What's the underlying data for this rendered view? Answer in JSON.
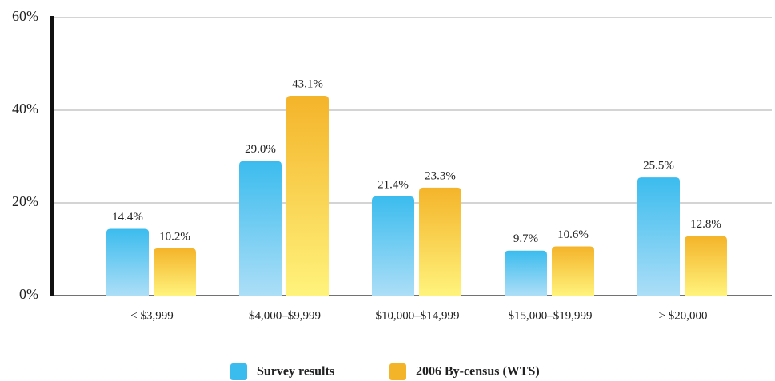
{
  "chart_data": {
    "type": "bar",
    "categories": [
      "< $3,999",
      "$4,000–$9,999",
      "$10,000–$14,999",
      "$15,000–$19,999",
      "> $20,000"
    ],
    "series": [
      {
        "name": "Survey results",
        "color": "#3bbcee",
        "values": [
          14.4,
          29.0,
          21.4,
          9.7,
          25.5
        ],
        "value_labels": [
          "14.4%",
          "29.0%",
          "21.4%",
          "9.7%",
          "25.5%"
        ]
      },
      {
        "name": "2006 By-census (WTS)",
        "color": "#f4b42a",
        "values": [
          10.2,
          43.1,
          23.3,
          10.6,
          12.8
        ],
        "value_labels": [
          "10.2%",
          "43.1%",
          "23.3%",
          "10.6%",
          "12.8%"
        ]
      }
    ],
    "ylim": [
      0,
      60
    ],
    "yticks": [
      {
        "value": 0,
        "label": "0%"
      },
      {
        "value": 20,
        "label": "20%"
      },
      {
        "value": 40,
        "label": "40%"
      },
      {
        "value": 60,
        "label": "60%"
      }
    ],
    "grid": true,
    "legend": "bottom"
  }
}
